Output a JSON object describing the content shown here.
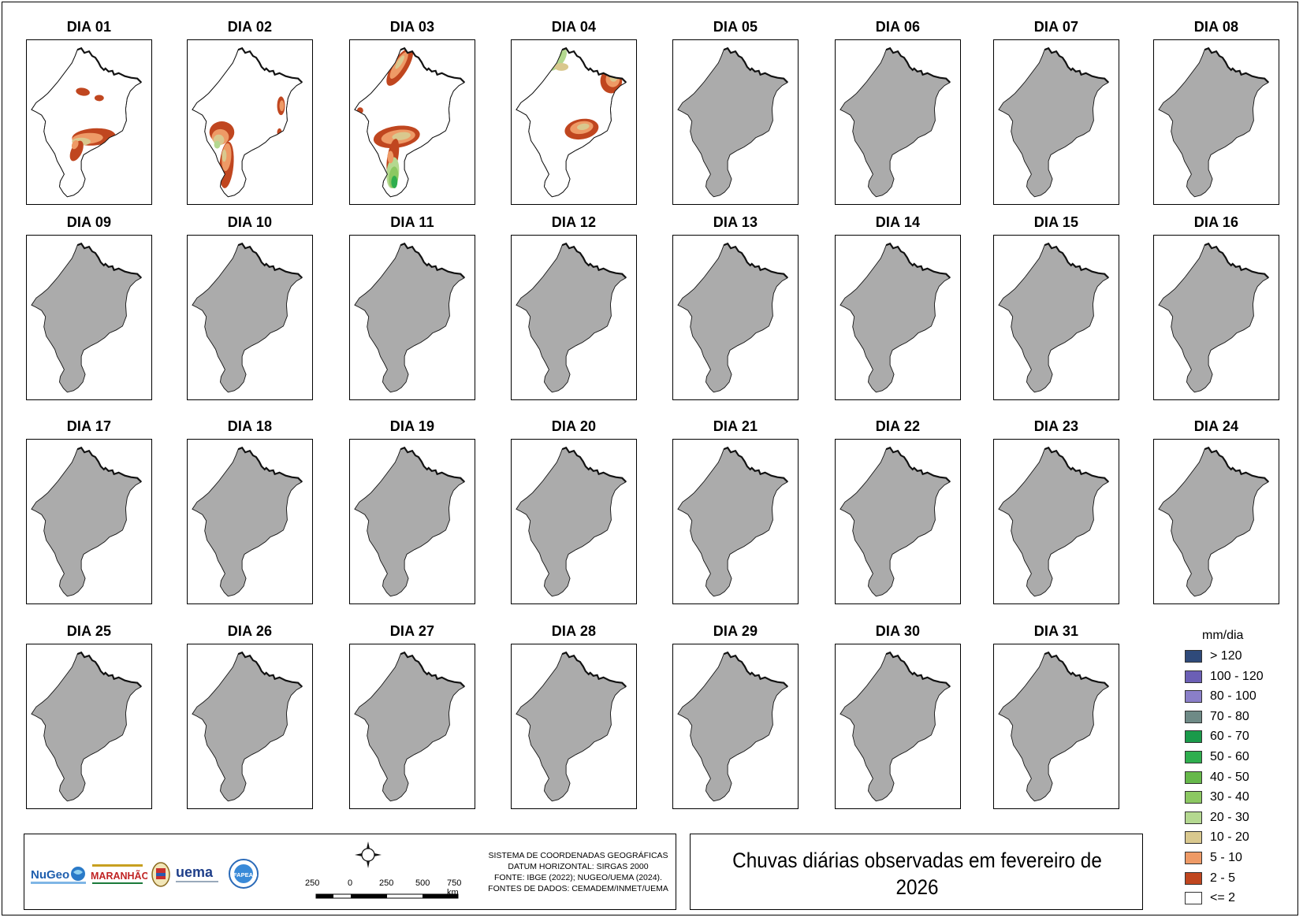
{
  "panels": [
    {
      "label": "DIA 01",
      "pattern": "d01"
    },
    {
      "label": "DIA 02",
      "pattern": "d02"
    },
    {
      "label": "DIA 03",
      "pattern": "d03"
    },
    {
      "label": "DIA 04",
      "pattern": "d04"
    },
    {
      "label": "DIA 05",
      "pattern": "nodata"
    },
    {
      "label": "DIA 06",
      "pattern": "nodata"
    },
    {
      "label": "DIA 07",
      "pattern": "nodata"
    },
    {
      "label": "DIA 08",
      "pattern": "nodata"
    },
    {
      "label": "DIA 09",
      "pattern": "nodata"
    },
    {
      "label": "DIA 10",
      "pattern": "nodata"
    },
    {
      "label": "DIA 11",
      "pattern": "nodata"
    },
    {
      "label": "DIA 12",
      "pattern": "nodata"
    },
    {
      "label": "DIA 13",
      "pattern": "nodata"
    },
    {
      "label": "DIA 14",
      "pattern": "nodata"
    },
    {
      "label": "DIA 15",
      "pattern": "nodata"
    },
    {
      "label": "DIA 16",
      "pattern": "nodata"
    },
    {
      "label": "DIA 17",
      "pattern": "nodata"
    },
    {
      "label": "DIA 18",
      "pattern": "nodata"
    },
    {
      "label": "DIA 19",
      "pattern": "nodata"
    },
    {
      "label": "DIA 20",
      "pattern": "nodata"
    },
    {
      "label": "DIA 21",
      "pattern": "nodata"
    },
    {
      "label": "DIA 22",
      "pattern": "nodata"
    },
    {
      "label": "DIA 23",
      "pattern": "nodata"
    },
    {
      "label": "DIA 24",
      "pattern": "nodata"
    },
    {
      "label": "DIA 25",
      "pattern": "nodata"
    },
    {
      "label": "DIA 26",
      "pattern": "nodata"
    },
    {
      "label": "DIA 27",
      "pattern": "nodata"
    },
    {
      "label": "DIA 28",
      "pattern": "nodata"
    },
    {
      "label": "DIA 29",
      "pattern": "nodata"
    },
    {
      "label": "DIA 30",
      "pattern": "nodata"
    },
    {
      "label": "DIA 31",
      "pattern": "nodata"
    }
  ],
  "legend": {
    "title": "mm/dia",
    "items": [
      {
        "label": "> 120",
        "color": "#2f4a7a"
      },
      {
        "label": "100 - 120",
        "color": "#6b5fb5"
      },
      {
        "label": "80 - 100",
        "color": "#8a7fc8"
      },
      {
        "label": "70 - 80",
        "color": "#6e8a86"
      },
      {
        "label": "60 - 70",
        "color": "#1a9a4a"
      },
      {
        "label": "50 - 60",
        "color": "#2fae4e"
      },
      {
        "label": "40 - 50",
        "color": "#66b84a"
      },
      {
        "label": "30 - 40",
        "color": "#8cc862"
      },
      {
        "label": "20 - 30",
        "color": "#b4d890"
      },
      {
        "label": "10 - 20",
        "color": "#d9c88e"
      },
      {
        "label": "5 - 10",
        "color": "#ee9a66"
      },
      {
        "label": "2 - 5",
        "color": "#c0461f"
      },
      {
        "label": "<= 2",
        "color": "#ffffff"
      }
    ]
  },
  "colors": {
    "nodata_fill": "#ababab",
    "outline": "#111111"
  },
  "logos": {
    "nugeo": "NuGeo",
    "maranhao": "MARANHÃO",
    "uema": "uema",
    "fapead": "FAPEAD"
  },
  "crs_lines": [
    "SISTEMA DE COORDENADAS GEOGRÁFICAS",
    "DATUM HORIZONTAL: SIRGAS 2000",
    "FONTE: IBGE (2022); NUGEO/UEMA (2024).",
    "FONTES DE DADOS: CEMADEM/INMET/UEMA"
  ],
  "scalebar": {
    "labels": [
      "250",
      "0",
      "250",
      "500",
      "750 km"
    ]
  },
  "map_title": "Chuvas diárias observadas em fevereiro de 2026",
  "icons": {
    "north_arrow": "compass-rose-icon"
  }
}
